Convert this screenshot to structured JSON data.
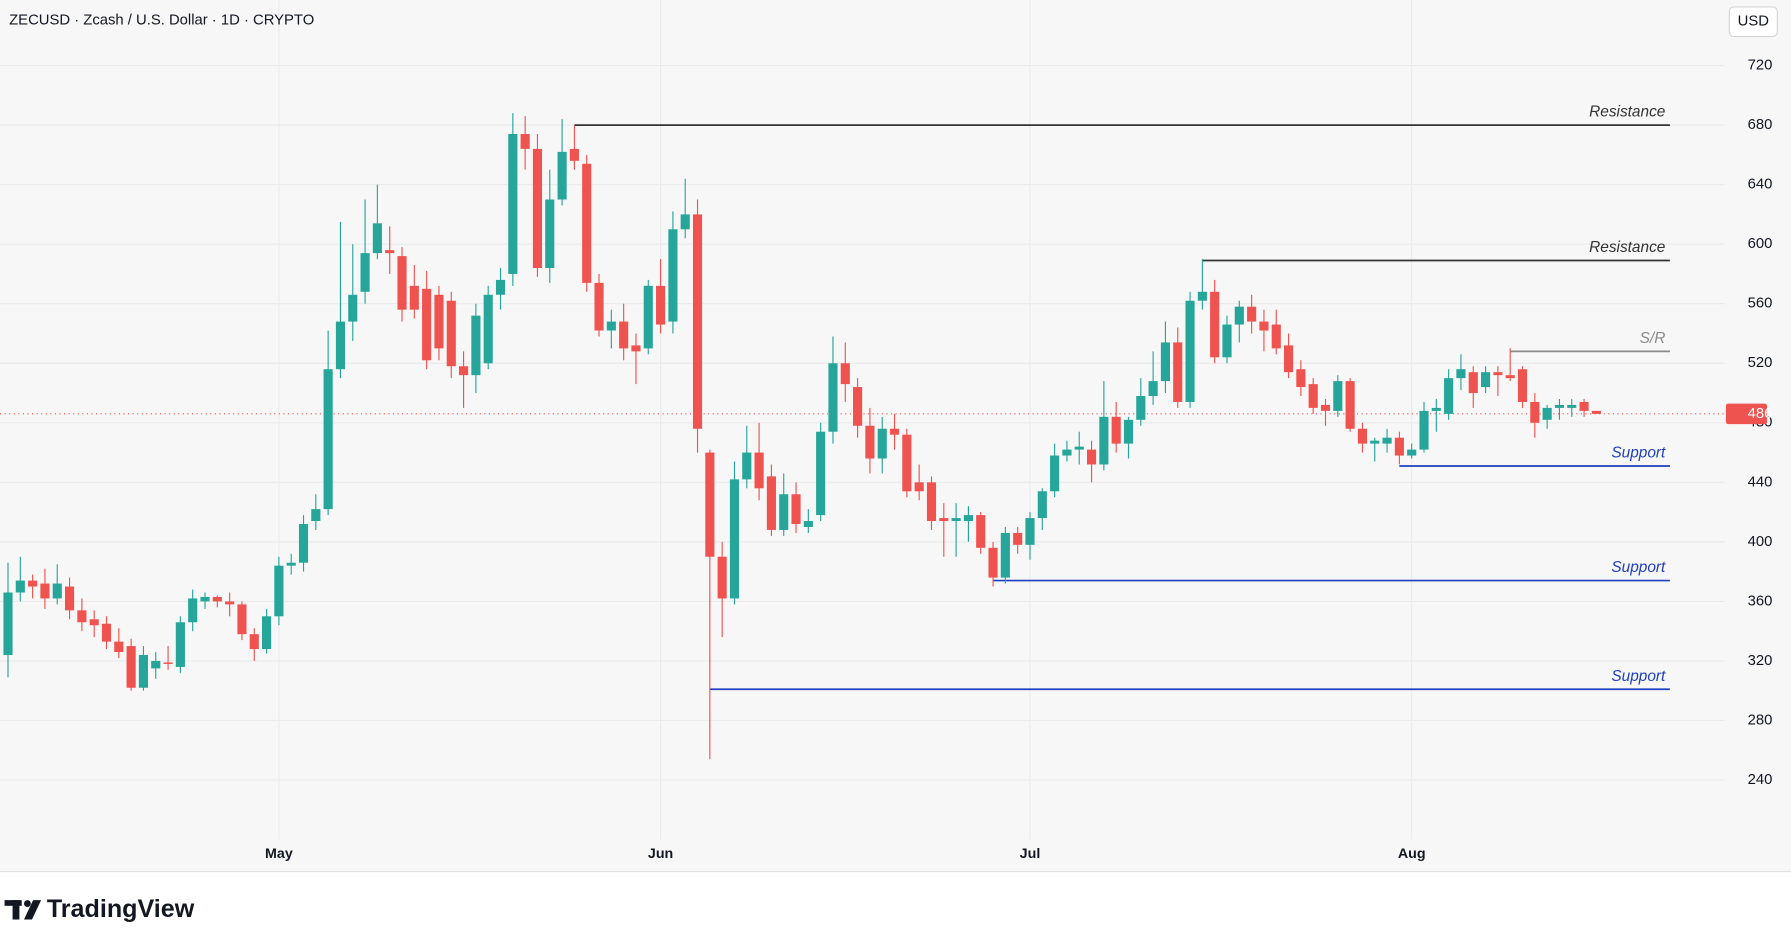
{
  "chart_data": {
    "type": "candlestick",
    "title": "ZECUSD · Zcash / U.S. Dollar · 1D · CRYPTO",
    "currency": "USD",
    "brand": "TradingView",
    "up_color": "#26a69a",
    "down_color": "#ef5350",
    "grid": true,
    "ylim": [
      200,
      764
    ],
    "yticks": [
      240,
      280,
      320,
      360,
      400,
      440,
      480,
      520,
      560,
      600,
      640,
      680,
      720
    ],
    "categories": [
      null,
      null,
      null,
      null,
      null,
      null,
      null,
      null,
      null,
      null,
      null,
      null,
      null,
      null,
      null,
      null,
      null,
      null,
      null,
      null,
      null,
      null,
      "May",
      null,
      null,
      null,
      null,
      null,
      null,
      null,
      null,
      null,
      null,
      null,
      null,
      null,
      null,
      null,
      null,
      null,
      null,
      null,
      null,
      null,
      null,
      null,
      null,
      null,
      null,
      null,
      null,
      null,
      null,
      "Jun",
      null,
      null,
      null,
      null,
      null,
      null,
      null,
      null,
      null,
      null,
      null,
      null,
      null,
      null,
      null,
      null,
      null,
      null,
      null,
      null,
      null,
      null,
      null,
      null,
      null,
      null,
      null,
      null,
      null,
      "Jul",
      null,
      null,
      null,
      null,
      null,
      null,
      null,
      null,
      null,
      null,
      null,
      null,
      null,
      null,
      null,
      null,
      null,
      null,
      null,
      null,
      null,
      null,
      null,
      null,
      null,
      null,
      null,
      null,
      null,
      null,
      "Aug",
      null,
      null,
      null,
      null,
      null,
      null,
      null,
      null,
      null,
      null,
      null,
      null,
      null,
      null,
      null
    ],
    "open": [
      324,
      366,
      374,
      372,
      362,
      370,
      354,
      348,
      345,
      333,
      330,
      302,
      315,
      319,
      316,
      346,
      360,
      363,
      360,
      358,
      338,
      328,
      350,
      384,
      386,
      414,
      422,
      516,
      548,
      568,
      594,
      596,
      592,
      572,
      570,
      566,
      562,
      518,
      512,
      520,
      566,
      580,
      674,
      664,
      584,
      630,
      664,
      654,
      574,
      542,
      548,
      532,
      530,
      572,
      548,
      610,
      620,
      460,
      390,
      362,
      442,
      460,
      444,
      408,
      432,
      410,
      418,
      474,
      520,
      504,
      478,
      456,
      476,
      472,
      440,
      440,
      416,
      414,
      414,
      418,
      396,
      376,
      406,
      398,
      416,
      434,
      458,
      462,
      462,
      452,
      484,
      466,
      482,
      498,
      508,
      534,
      494,
      562,
      568,
      524,
      546,
      558,
      548,
      546,
      532,
      516,
      506,
      492,
      488,
      508,
      476,
      466,
      466,
      470,
      458,
      462,
      488,
      486,
      510,
      514,
      504,
      514,
      512,
      516,
      494,
      482,
      490,
      490,
      494,
      488
    ],
    "high": [
      386,
      390,
      378,
      382,
      385,
      376,
      362,
      354,
      350,
      342,
      335,
      330,
      326,
      330,
      350,
      368,
      366,
      364,
      366,
      360,
      342,
      355,
      390,
      392,
      418,
      432,
      542,
      615,
      600,
      630,
      640,
      612,
      598,
      586,
      582,
      572,
      568,
      528,
      560,
      572,
      584,
      688,
      686,
      674,
      650,
      684,
      680,
      660,
      580,
      556,
      560,
      540,
      576,
      590,
      622,
      644,
      630,
      462,
      400,
      454,
      478,
      480,
      452,
      446,
      440,
      422,
      480,
      538,
      534,
      510,
      490,
      484,
      486,
      476,
      452,
      444,
      426,
      426,
      424,
      420,
      400,
      410,
      410,
      420,
      436,
      466,
      468,
      474,
      468,
      508,
      494,
      484,
      510,
      528,
      548,
      544,
      568,
      590,
      576,
      552,
      562,
      566,
      556,
      556,
      540,
      522,
      510,
      496,
      512,
      510,
      480,
      470,
      476,
      474,
      466,
      494,
      496,
      516,
      526,
      518,
      518,
      518,
      530,
      518,
      500,
      492,
      496,
      496,
      496,
      488
    ],
    "low": [
      309,
      360,
      362,
      355,
      358,
      348,
      340,
      336,
      328,
      322,
      300,
      300,
      308,
      314,
      312,
      340,
      355,
      356,
      350,
      334,
      320,
      325,
      344,
      378,
      380,
      408,
      418,
      510,
      535,
      560,
      590,
      580,
      548,
      550,
      516,
      522,
      510,
      490,
      500,
      516,
      556,
      572,
      650,
      578,
      574,
      626,
      650,
      568,
      538,
      530,
      522,
      506,
      526,
      540,
      540,
      604,
      460,
      254,
      336,
      358,
      436,
      428,
      404,
      404,
      406,
      406,
      414,
      466,
      494,
      470,
      446,
      446,
      462,
      430,
      428,
      408,
      390,
      390,
      400,
      392,
      370,
      372,
      392,
      388,
      408,
      430,
      454,
      452,
      440,
      448,
      460,
      456,
      478,
      492,
      500,
      490,
      490,
      556,
      520,
      520,
      534,
      540,
      528,
      526,
      510,
      498,
      486,
      478,
      484,
      474,
      460,
      454,
      460,
      452,
      456,
      460,
      474,
      482,
      502,
      490,
      500,
      498,
      508,
      490,
      470,
      476,
      482,
      484,
      484,
      486
    ],
    "close": [
      366,
      374,
      370,
      362,
      372,
      354,
      346,
      344,
      333,
      326,
      302,
      324,
      320,
      318,
      346,
      362,
      363,
      360,
      358,
      338,
      328,
      350,
      384,
      386,
      412,
      422,
      516,
      548,
      566,
      594,
      614,
      594,
      556,
      556,
      522,
      530,
      518,
      512,
      552,
      566,
      576,
      674,
      664,
      584,
      630,
      662,
      656,
      574,
      542,
      548,
      530,
      528,
      572,
      546,
      610,
      620,
      476,
      390,
      362,
      442,
      460,
      436,
      408,
      432,
      412,
      414,
      474,
      520,
      506,
      478,
      456,
      476,
      472,
      434,
      434,
      414,
      414,
      416,
      418,
      396,
      376,
      406,
      398,
      416,
      434,
      458,
      462,
      464,
      452,
      484,
      466,
      482,
      498,
      508,
      534,
      494,
      562,
      568,
      524,
      546,
      558,
      548,
      542,
      530,
      514,
      504,
      490,
      488,
      508,
      476,
      466,
      468,
      470,
      458,
      462,
      488,
      490,
      510,
      516,
      500,
      514,
      512,
      510,
      494,
      480,
      490,
      492,
      492,
      488,
      486
    ],
    "levels": [
      {
        "label": "Resistance",
        "value": 680,
        "start": 46,
        "color": "#333333"
      },
      {
        "label": "Resistance",
        "value": 589,
        "start": 97,
        "color": "#333333"
      },
      {
        "label": "S/R",
        "value": 528,
        "start": 122,
        "color": "#8a8a8a"
      },
      {
        "label": "Support",
        "value": 451,
        "start": 113,
        "color": "#1f3fbf"
      },
      {
        "label": "Support",
        "value": 374,
        "start": 80,
        "color": "#1f3fbf"
      },
      {
        "label": "Support",
        "value": 301,
        "start": 57,
        "color": "#1f3fbf"
      }
    ]
  }
}
